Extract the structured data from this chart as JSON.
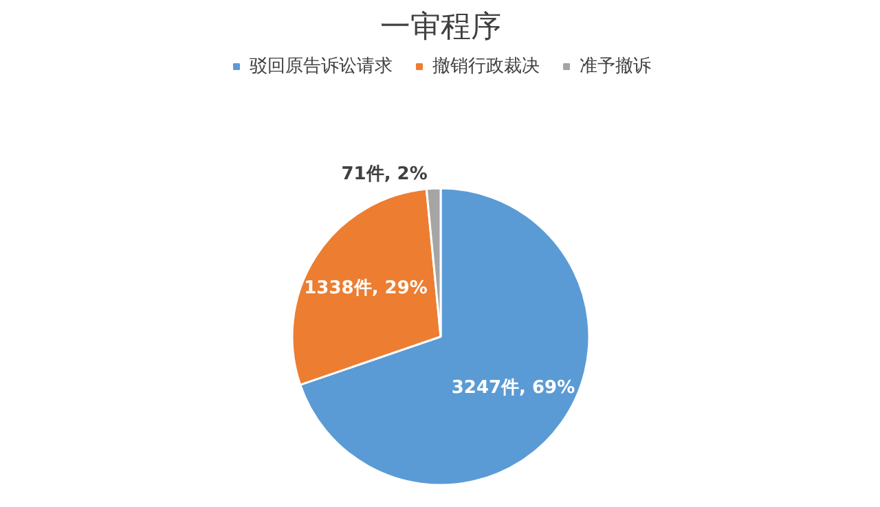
{
  "chart_data": {
    "type": "pie",
    "title": "一审程序",
    "categories": [
      "驳回原告诉讼请求",
      "撤销行政裁决",
      "准予撤诉"
    ],
    "values": [
      3247,
      1338,
      71
    ],
    "colors": [
      "#5b9bd5",
      "#ed7d31",
      "#a5a5a5"
    ],
    "value_labels": [
      "3247件, 69%",
      "1338件, 29%",
      "71件, 2%"
    ],
    "legend": "top"
  }
}
